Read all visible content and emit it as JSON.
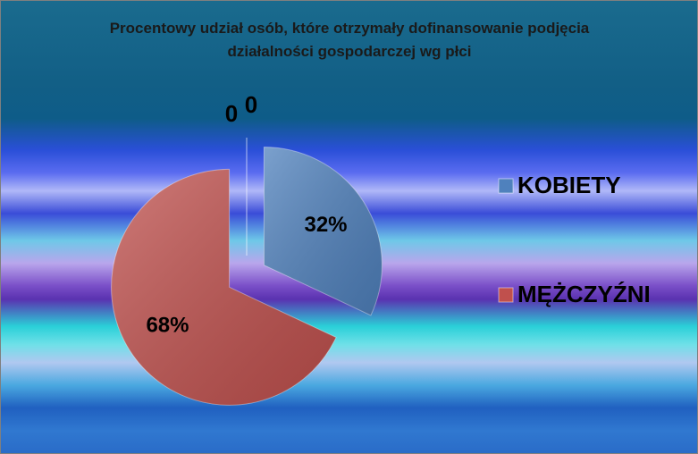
{
  "chart_data": {
    "type": "pie",
    "title": "Procentowy udział osób, które otrzymały dofinansowanie podjęcia działalności gospodarczej wg płci",
    "categories": [
      "KOBIETY",
      "MĘŻCZYŹNI",
      null,
      null
    ],
    "values": [
      32,
      68,
      0,
      0
    ],
    "value_labels": [
      "32%",
      "68%",
      "0",
      "0"
    ],
    "colors": [
      "#4f81bd",
      "#c0504d",
      "#9bbb59",
      "#8064a2"
    ],
    "legend": "right"
  }
}
